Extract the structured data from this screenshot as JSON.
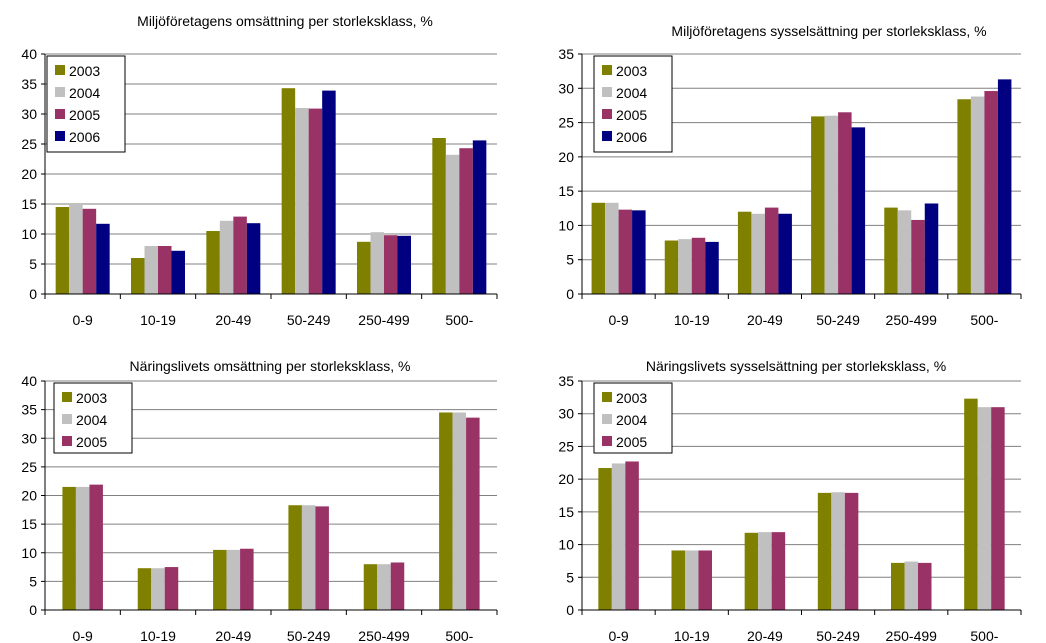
{
  "colors": {
    "2003": "#808000",
    "2004": "#c0c0c0",
    "2005": "#993366",
    "2006": "#000080"
  },
  "chart_data": [
    {
      "type": "bar",
      "title": "Miljöföretagens omsättning per storleksklass, %",
      "categories": [
        "0-9",
        "10-19",
        "20-49",
        "50-249",
        "250-499",
        "500-"
      ],
      "ylim": [
        0,
        40
      ],
      "yticks": [
        0,
        5,
        10,
        15,
        20,
        25,
        30,
        35,
        40
      ],
      "grid": true,
      "legend": "top-left",
      "series": [
        {
          "name": "2003",
          "values": [
            14.5,
            6.0,
            10.5,
            34.3,
            8.7,
            26.0
          ]
        },
        {
          "name": "2004",
          "values": [
            15.0,
            8.0,
            12.2,
            31.0,
            10.3,
            23.2
          ]
        },
        {
          "name": "2005",
          "values": [
            14.2,
            8.0,
            12.9,
            30.9,
            9.8,
            24.3
          ]
        },
        {
          "name": "2006",
          "values": [
            11.7,
            7.2,
            11.8,
            33.9,
            9.7,
            25.6
          ]
        }
      ]
    },
    {
      "type": "bar",
      "title": "Miljöföretagens sysselsättning per storleksklass, %",
      "categories": [
        "0-9",
        "10-19",
        "20-49",
        "50-249",
        "250-499",
        "500-"
      ],
      "ylim": [
        0,
        35
      ],
      "yticks": [
        0,
        5,
        10,
        15,
        20,
        25,
        30,
        35
      ],
      "grid": true,
      "legend": "top-left",
      "series": [
        {
          "name": "2003",
          "values": [
            13.3,
            7.8,
            12.0,
            25.9,
            12.6,
            28.4
          ]
        },
        {
          "name": "2004",
          "values": [
            13.3,
            8.0,
            11.7,
            26.0,
            12.2,
            28.8
          ]
        },
        {
          "name": "2005",
          "values": [
            12.3,
            8.2,
            12.6,
            26.5,
            10.8,
            29.6
          ]
        },
        {
          "name": "2006",
          "values": [
            12.2,
            7.6,
            11.7,
            24.3,
            13.2,
            31.3
          ]
        }
      ]
    },
    {
      "type": "bar",
      "title": "Näringslivets omsättning per storleksklass, %",
      "categories": [
        "0-9",
        "10-19",
        "20-49",
        "50-249",
        "250-499",
        "500-"
      ],
      "ylim": [
        0,
        40
      ],
      "yticks": [
        0,
        5,
        10,
        15,
        20,
        25,
        30,
        35,
        40
      ],
      "grid": true,
      "legend": "top-left",
      "series": [
        {
          "name": "2003",
          "values": [
            21.5,
            7.3,
            10.5,
            18.3,
            8.0,
            34.5
          ]
        },
        {
          "name": "2004",
          "values": [
            21.5,
            7.3,
            10.5,
            18.3,
            8.0,
            34.5
          ]
        },
        {
          "name": "2005",
          "values": [
            21.9,
            7.5,
            10.7,
            18.1,
            8.3,
            33.6
          ]
        }
      ]
    },
    {
      "type": "bar",
      "title": "Näringslivets sysselsättning per storleksklass, %",
      "categories": [
        "0-9",
        "10-19",
        "20-49",
        "50-249",
        "250-499",
        "500-"
      ],
      "ylim": [
        0,
        35
      ],
      "yticks": [
        0,
        5,
        10,
        15,
        20,
        25,
        30,
        35
      ],
      "grid": true,
      "legend": "top-left",
      "series": [
        {
          "name": "2003",
          "values": [
            21.7,
            9.1,
            11.8,
            17.9,
            7.2,
            32.3
          ]
        },
        {
          "name": "2004",
          "values": [
            22.4,
            9.1,
            11.9,
            18.0,
            7.4,
            31.0
          ]
        },
        {
          "name": "2005",
          "values": [
            22.7,
            9.1,
            11.9,
            17.9,
            7.2,
            31.0
          ]
        }
      ]
    }
  ]
}
